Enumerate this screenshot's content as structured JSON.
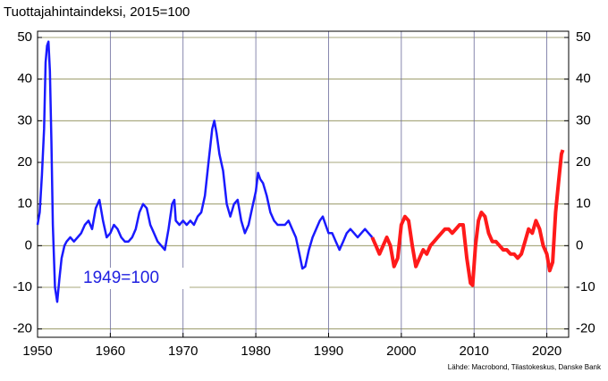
{
  "chart_data": {
    "type": "line",
    "title": "Tuottajahintaindeksi, 2015=100",
    "annotation": "1949=100",
    "source": "Lähde: Macrobond, Tilastokeskus, Danske Bank",
    "xlim": [
      1950,
      2023
    ],
    "xticks": [
      1950,
      1960,
      1970,
      1980,
      1990,
      2000,
      2010,
      2020
    ],
    "ylim": [
      -22,
      51.5
    ],
    "yticks": [
      -20,
      -10,
      0,
      10,
      20,
      30,
      40,
      50
    ],
    "y2lim": [
      -22,
      51.5
    ],
    "y2ticks": [
      -20,
      -10,
      0,
      10,
      20,
      30,
      40,
      50
    ],
    "grid": true,
    "series": [
      {
        "color": "#1a1aff",
        "x": [
          1950.0,
          1950.3,
          1950.6,
          1950.9,
          1951.1,
          1951.3,
          1951.5,
          1951.7,
          1951.9,
          1952.1,
          1952.4,
          1952.7,
          1953.0,
          1953.3,
          1953.7,
          1954.0,
          1954.5,
          1955.0,
          1955.5,
          1956.0,
          1956.5,
          1957.0,
          1957.5,
          1958.0,
          1958.5,
          1959.0,
          1959.5,
          1960.0,
          1960.5,
          1961.0,
          1961.5,
          1962.0,
          1962.5,
          1963.0,
          1963.5,
          1964.0,
          1964.5,
          1965.0,
          1965.5,
          1966.0,
          1966.5,
          1967.0,
          1967.5,
          1968.0,
          1968.5,
          1968.8,
          1969.0,
          1969.5,
          1970.0,
          1970.5,
          1971.0,
          1971.5,
          1972.0,
          1972.5,
          1973.0,
          1973.5,
          1974.0,
          1974.3,
          1974.6,
          1975.0,
          1975.5,
          1976.0,
          1976.5,
          1977.0,
          1977.5,
          1978.0,
          1978.5,
          1979.0,
          1979.5,
          1980.0,
          1980.3,
          1980.6,
          1981.0,
          1981.5,
          1982.0,
          1982.5,
          1983.0,
          1983.5,
          1984.0,
          1984.5,
          1985.0,
          1985.5,
          1986.0,
          1986.4,
          1986.8,
          1987.3,
          1987.8,
          1988.3,
          1988.8,
          1989.2,
          1989.6,
          1990.0,
          1990.5,
          1991.0,
          1991.5,
          1992.0,
          1992.5,
          1993.0,
          1993.5,
          1994.0,
          1994.5,
          1995.0,
          1995.5,
          1996.0
        ],
        "values": [
          5,
          8,
          17,
          28,
          44,
          48,
          49,
          42,
          25,
          5,
          -10,
          -13.5,
          -8,
          -3,
          0,
          1,
          2,
          1,
          2,
          3,
          5,
          6,
          4,
          9,
          11,
          6,
          2,
          3,
          5,
          4,
          2,
          1,
          1,
          2,
          4,
          8,
          10,
          9,
          5,
          3,
          1,
          0,
          -1,
          4,
          10,
          11,
          6,
          5,
          6,
          5,
          6,
          5,
          7,
          8,
          12,
          20,
          28,
          30,
          27,
          22,
          18,
          10,
          7,
          10,
          11,
          6,
          3,
          5,
          9,
          13,
          17.5,
          16,
          15,
          12,
          8,
          6,
          5,
          5,
          5,
          6,
          4,
          2,
          -2,
          -5.5,
          -5,
          -1,
          2,
          4,
          6,
          7,
          5,
          3,
          3,
          1,
          -1,
          1,
          3,
          4,
          3,
          2,
          3,
          4,
          3,
          2
        ]
      },
      {
        "color": "#ff1a1a",
        "x": [
          1996.0,
          1996.5,
          1997.0,
          1997.5,
          1998.0,
          1998.5,
          1999.0,
          1999.5,
          2000.0,
          2000.5,
          2001.0,
          2001.5,
          2002.0,
          2002.5,
          2003.0,
          2003.5,
          2004.0,
          2004.5,
          2005.0,
          2005.5,
          2006.0,
          2006.5,
          2007.0,
          2007.5,
          2008.0,
          2008.5,
          2009.0,
          2009.5,
          2009.8,
          2010.2,
          2010.6,
          2011.0,
          2011.5,
          2012.0,
          2012.5,
          2013.0,
          2013.5,
          2014.0,
          2014.5,
          2015.0,
          2015.5,
          2016.0,
          2016.5,
          2017.0,
          2017.5,
          2018.0,
          2018.5,
          2019.0,
          2019.5,
          2020.0,
          2020.4,
          2020.8,
          2021.2,
          2021.6,
          2022.0,
          2022.2
        ],
        "values": [
          2,
          0,
          -2,
          0,
          2,
          0,
          -5,
          -3,
          5,
          7,
          6,
          0,
          -5,
          -3,
          -1,
          -2,
          0,
          1,
          2,
          3,
          4,
          4,
          3,
          4,
          5,
          5,
          -3,
          -9,
          -9.5,
          0,
          6,
          8,
          7,
          3,
          1,
          1,
          0,
          -1,
          -1,
          -2,
          -2,
          -3,
          -2,
          1,
          4,
          3,
          6,
          4,
          0,
          -2,
          -6,
          -4,
          8,
          15,
          22,
          23
        ]
      }
    ]
  }
}
